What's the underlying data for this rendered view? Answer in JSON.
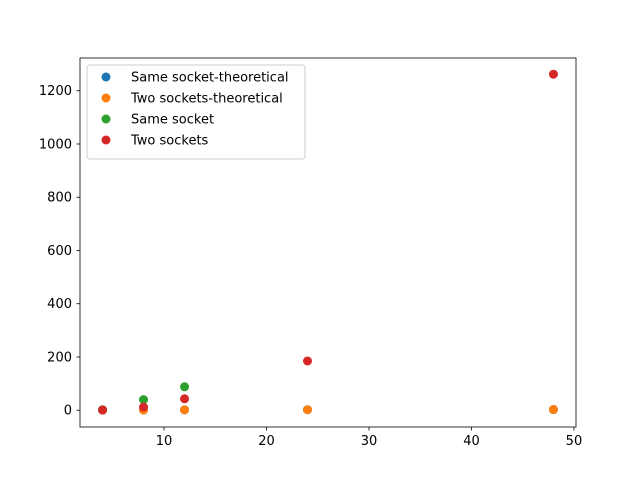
{
  "chart_data": {
    "type": "scatter",
    "title": "",
    "xlabel": "",
    "ylabel": "",
    "xlim": [
      1.8,
      50.2
    ],
    "ylim": [
      -63,
      1323
    ],
    "x_ticks": [
      10,
      20,
      30,
      40,
      50
    ],
    "y_ticks": [
      0,
      200,
      400,
      600,
      800,
      1000,
      1200
    ],
    "grid": false,
    "legend_position": "upper-left",
    "series": [
      {
        "name": "Same socket-theoretical",
        "color": "#1f77b4",
        "points": [
          {
            "x": 4,
            "y": 0.5
          },
          {
            "x": 8,
            "y": 1.0
          },
          {
            "x": 12,
            "y": 1.5
          },
          {
            "x": 24,
            "y": 2.0
          },
          {
            "x": 48,
            "y": 2.5
          }
        ]
      },
      {
        "name": "Two sockets-theoretical",
        "color": "#ff7f0e",
        "points": [
          {
            "x": 4,
            "y": 0.5
          },
          {
            "x": 8,
            "y": 1.0
          },
          {
            "x": 12,
            "y": 1.5
          },
          {
            "x": 24,
            "y": 2.0
          },
          {
            "x": 48,
            "y": 2.5
          }
        ]
      },
      {
        "name": "Same socket",
        "color": "#2ca02c",
        "points": [
          {
            "x": 4,
            "y": 2
          },
          {
            "x": 8,
            "y": 40
          },
          {
            "x": 12,
            "y": 88
          }
        ]
      },
      {
        "name": "Two sockets",
        "color": "#d62728",
        "points": [
          {
            "x": 4,
            "y": 1
          },
          {
            "x": 8,
            "y": 12
          },
          {
            "x": 12,
            "y": 43
          },
          {
            "x": 24,
            "y": 185
          },
          {
            "x": 48,
            "y": 1262
          }
        ]
      }
    ]
  }
}
